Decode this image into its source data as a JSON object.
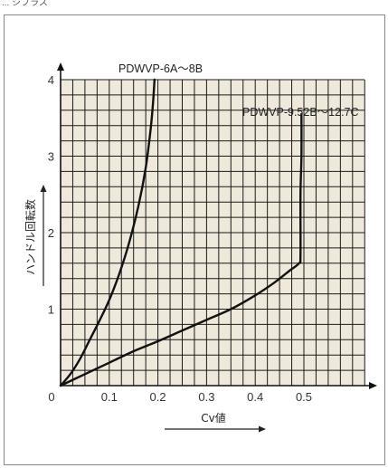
{
  "header_fragment": "... ジプラス",
  "colors": {
    "plot_background": "#efe9dc",
    "grid": "#1a1a1a",
    "curve": "#111111",
    "frame": "#8a8a8a"
  },
  "chart_data": {
    "type": "line",
    "title": "",
    "xlabel": "Cv値",
    "ylabel": "ハンドル回転数",
    "xlim": [
      0,
      0.6
    ],
    "ylim": [
      0,
      4
    ],
    "x_ticks": [
      0,
      0.1,
      0.2,
      0.3,
      0.4,
      0.5
    ],
    "x_tick_labels": [
      "0",
      "0.1",
      "0.2",
      "0.3",
      "0.4",
      "0.5"
    ],
    "y_ticks": [
      1,
      2,
      3,
      4
    ],
    "y_tick_labels": [
      "1",
      "2",
      "3",
      "4"
    ],
    "grid": true,
    "grid_step_x": 0.025,
    "grid_step_y": 0.2,
    "series": [
      {
        "name": "PDWVP-6A～8B",
        "points": [
          [
            0,
            0
          ],
          [
            0.02,
            0.15
          ],
          [
            0.04,
            0.35
          ],
          [
            0.06,
            0.6
          ],
          [
            0.08,
            0.85
          ],
          [
            0.1,
            1.12
          ],
          [
            0.12,
            1.45
          ],
          [
            0.14,
            1.85
          ],
          [
            0.16,
            2.35
          ],
          [
            0.175,
            2.85
          ],
          [
            0.185,
            3.35
          ],
          [
            0.19,
            3.7
          ],
          [
            0.193,
            4.0
          ]
        ]
      },
      {
        "name": "PDWVP-9.52B～12.7C",
        "points": [
          [
            0,
            0
          ],
          [
            0.05,
            0.15
          ],
          [
            0.1,
            0.3
          ],
          [
            0.15,
            0.45
          ],
          [
            0.2,
            0.58
          ],
          [
            0.25,
            0.72
          ],
          [
            0.3,
            0.86
          ],
          [
            0.35,
            1.0
          ],
          [
            0.4,
            1.18
          ],
          [
            0.44,
            1.35
          ],
          [
            0.47,
            1.5
          ],
          [
            0.49,
            1.6
          ],
          [
            0.493,
            1.7
          ],
          [
            0.493,
            2.5
          ],
          [
            0.495,
            3.0
          ],
          [
            0.495,
            3.55
          ]
        ]
      }
    ]
  }
}
